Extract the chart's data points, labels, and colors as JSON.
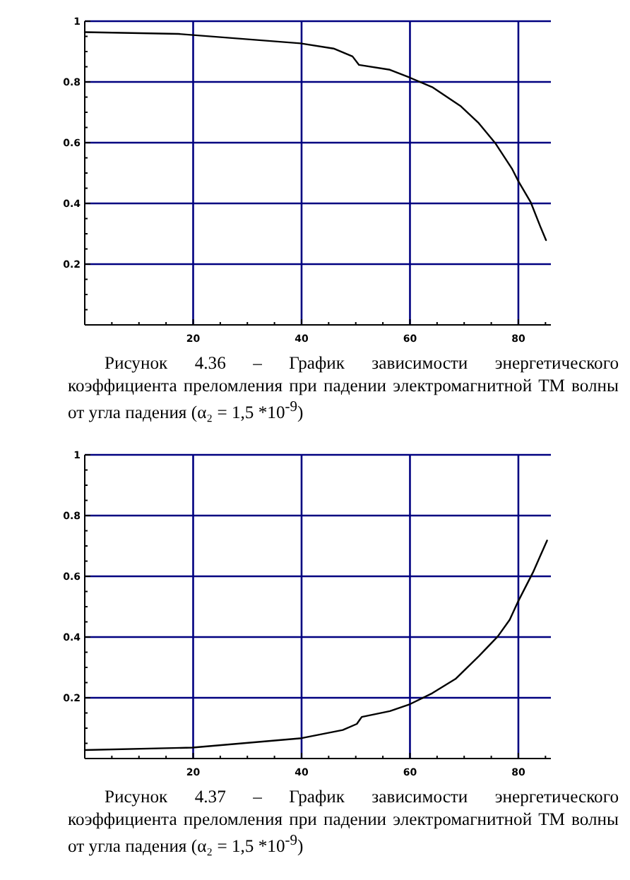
{
  "chart_data": [
    {
      "type": "line",
      "annotations": [
        "Рисунок 4.36 – График зависимости энергетического коэффициента преломления при падении электромагнитной ТМ волны от угла падения (α₂ = 1,5 *10$^{-9}$)"
      ],
      "x": [
        0,
        17.3,
        39.8,
        45.9,
        49.4,
        50.6,
        56.3,
        60,
        64.1,
        69.3,
        72.7,
        75.8,
        78.8,
        80,
        82.3,
        84,
        85.1
      ],
      "series": [
        {
          "color": "#000000",
          "values": [
            0.964,
            0.958,
            0.927,
            0.91,
            0.884,
            0.856,
            0.84,
            0.814,
            0.783,
            0.721,
            0.664,
            0.597,
            0.515,
            0.473,
            0.403,
            0.326,
            0.279
          ]
        }
      ],
      "xlim": [
        0,
        86
      ],
      "ylim": [
        0,
        1
      ],
      "xticks": [
        {
          "value": 5,
          "label": null
        },
        {
          "value": 10,
          "label": null
        },
        {
          "value": 15,
          "label": null
        },
        20,
        {
          "value": 25,
          "label": null
        },
        {
          "value": 30,
          "label": null
        },
        {
          "value": 35,
          "label": null
        },
        40,
        {
          "value": 45,
          "label": null
        },
        {
          "value": 50,
          "label": null
        },
        {
          "value": 55,
          "label": null
        },
        60,
        {
          "value": 65,
          "label": null
        },
        {
          "value": 70,
          "label": null
        },
        {
          "value": 75,
          "label": null
        },
        80,
        {
          "value": 85,
          "label": null
        }
      ],
      "yticks": [
        {
          "value": 0.05,
          "label": null
        },
        {
          "value": 0.1,
          "label": null
        },
        {
          "value": 0.15,
          "label": null
        },
        0.2,
        {
          "value": 0.25,
          "label": null
        },
        {
          "value": 0.3,
          "label": null
        },
        {
          "value": 0.35,
          "label": null
        },
        0.4,
        {
          "value": 0.45,
          "label": null
        },
        {
          "value": 0.5,
          "label": null
        },
        {
          "value": 0.55,
          "label": null
        },
        0.6,
        {
          "value": 0.65,
          "label": null
        },
        {
          "value": 0.7,
          "label": null
        },
        {
          "value": 0.75,
          "label": null
        },
        0.8,
        {
          "value": 0.85,
          "label": null
        },
        {
          "value": 0.9,
          "label": null
        },
        {
          "value": 0.95,
          "label": null
        },
        1
      ],
      "grid": true,
      "marker": "none",
      "line_style": "solid"
    },
    {
      "type": "line",
      "annotations": [
        "Рисунок 4.37 – График зависимости энергетического коэффициента преломления при падении электромагнитной ТМ волны от угла падения (α₂ = 1,5 *10$^{-9}$)"
      ],
      "x": [
        0,
        19.9,
        40,
        47.6,
        50.2,
        51.1,
        56.3,
        60,
        64.1,
        68.4,
        72.7,
        76.2,
        78.4,
        80,
        82.7,
        85.3
      ],
      "series": [
        {
          "color": "#000000",
          "values": [
            0.028,
            0.036,
            0.067,
            0.094,
            0.114,
            0.137,
            0.156,
            0.179,
            0.215,
            0.262,
            0.337,
            0.402,
            0.457,
            0.519,
            0.613,
            0.718
          ]
        }
      ],
      "xlim": [
        0,
        86
      ],
      "ylim": [
        0,
        1
      ],
      "xticks": [
        {
          "value": 5,
          "label": null
        },
        {
          "value": 10,
          "label": null
        },
        {
          "value": 15,
          "label": null
        },
        20,
        {
          "value": 25,
          "label": null
        },
        {
          "value": 30,
          "label": null
        },
        {
          "value": 35,
          "label": null
        },
        40,
        {
          "value": 45,
          "label": null
        },
        {
          "value": 50,
          "label": null
        },
        {
          "value": 55,
          "label": null
        },
        60,
        {
          "value": 65,
          "label": null
        },
        {
          "value": 70,
          "label": null
        },
        {
          "value": 75,
          "label": null
        },
        80,
        {
          "value": 85,
          "label": null
        }
      ],
      "yticks": [
        {
          "value": 0.05,
          "label": null
        },
        {
          "value": 0.1,
          "label": null
        },
        {
          "value": 0.15,
          "label": null
        },
        0.2,
        {
          "value": 0.25,
          "label": null
        },
        {
          "value": 0.3,
          "label": null
        },
        {
          "value": 0.35,
          "label": null
        },
        0.4,
        {
          "value": 0.45,
          "label": null
        },
        {
          "value": 0.5,
          "label": null
        },
        {
          "value": 0.55,
          "label": null
        },
        0.6,
        {
          "value": 0.65,
          "label": null
        },
        {
          "value": 0.7,
          "label": null
        },
        {
          "value": 0.75,
          "label": null
        },
        0.8,
        {
          "value": 0.85,
          "label": null
        },
        {
          "value": 0.9,
          "label": null
        },
        {
          "value": 0.95,
          "label": null
        },
        1
      ],
      "grid": true,
      "marker": "none",
      "line_style": "solid"
    }
  ]
}
